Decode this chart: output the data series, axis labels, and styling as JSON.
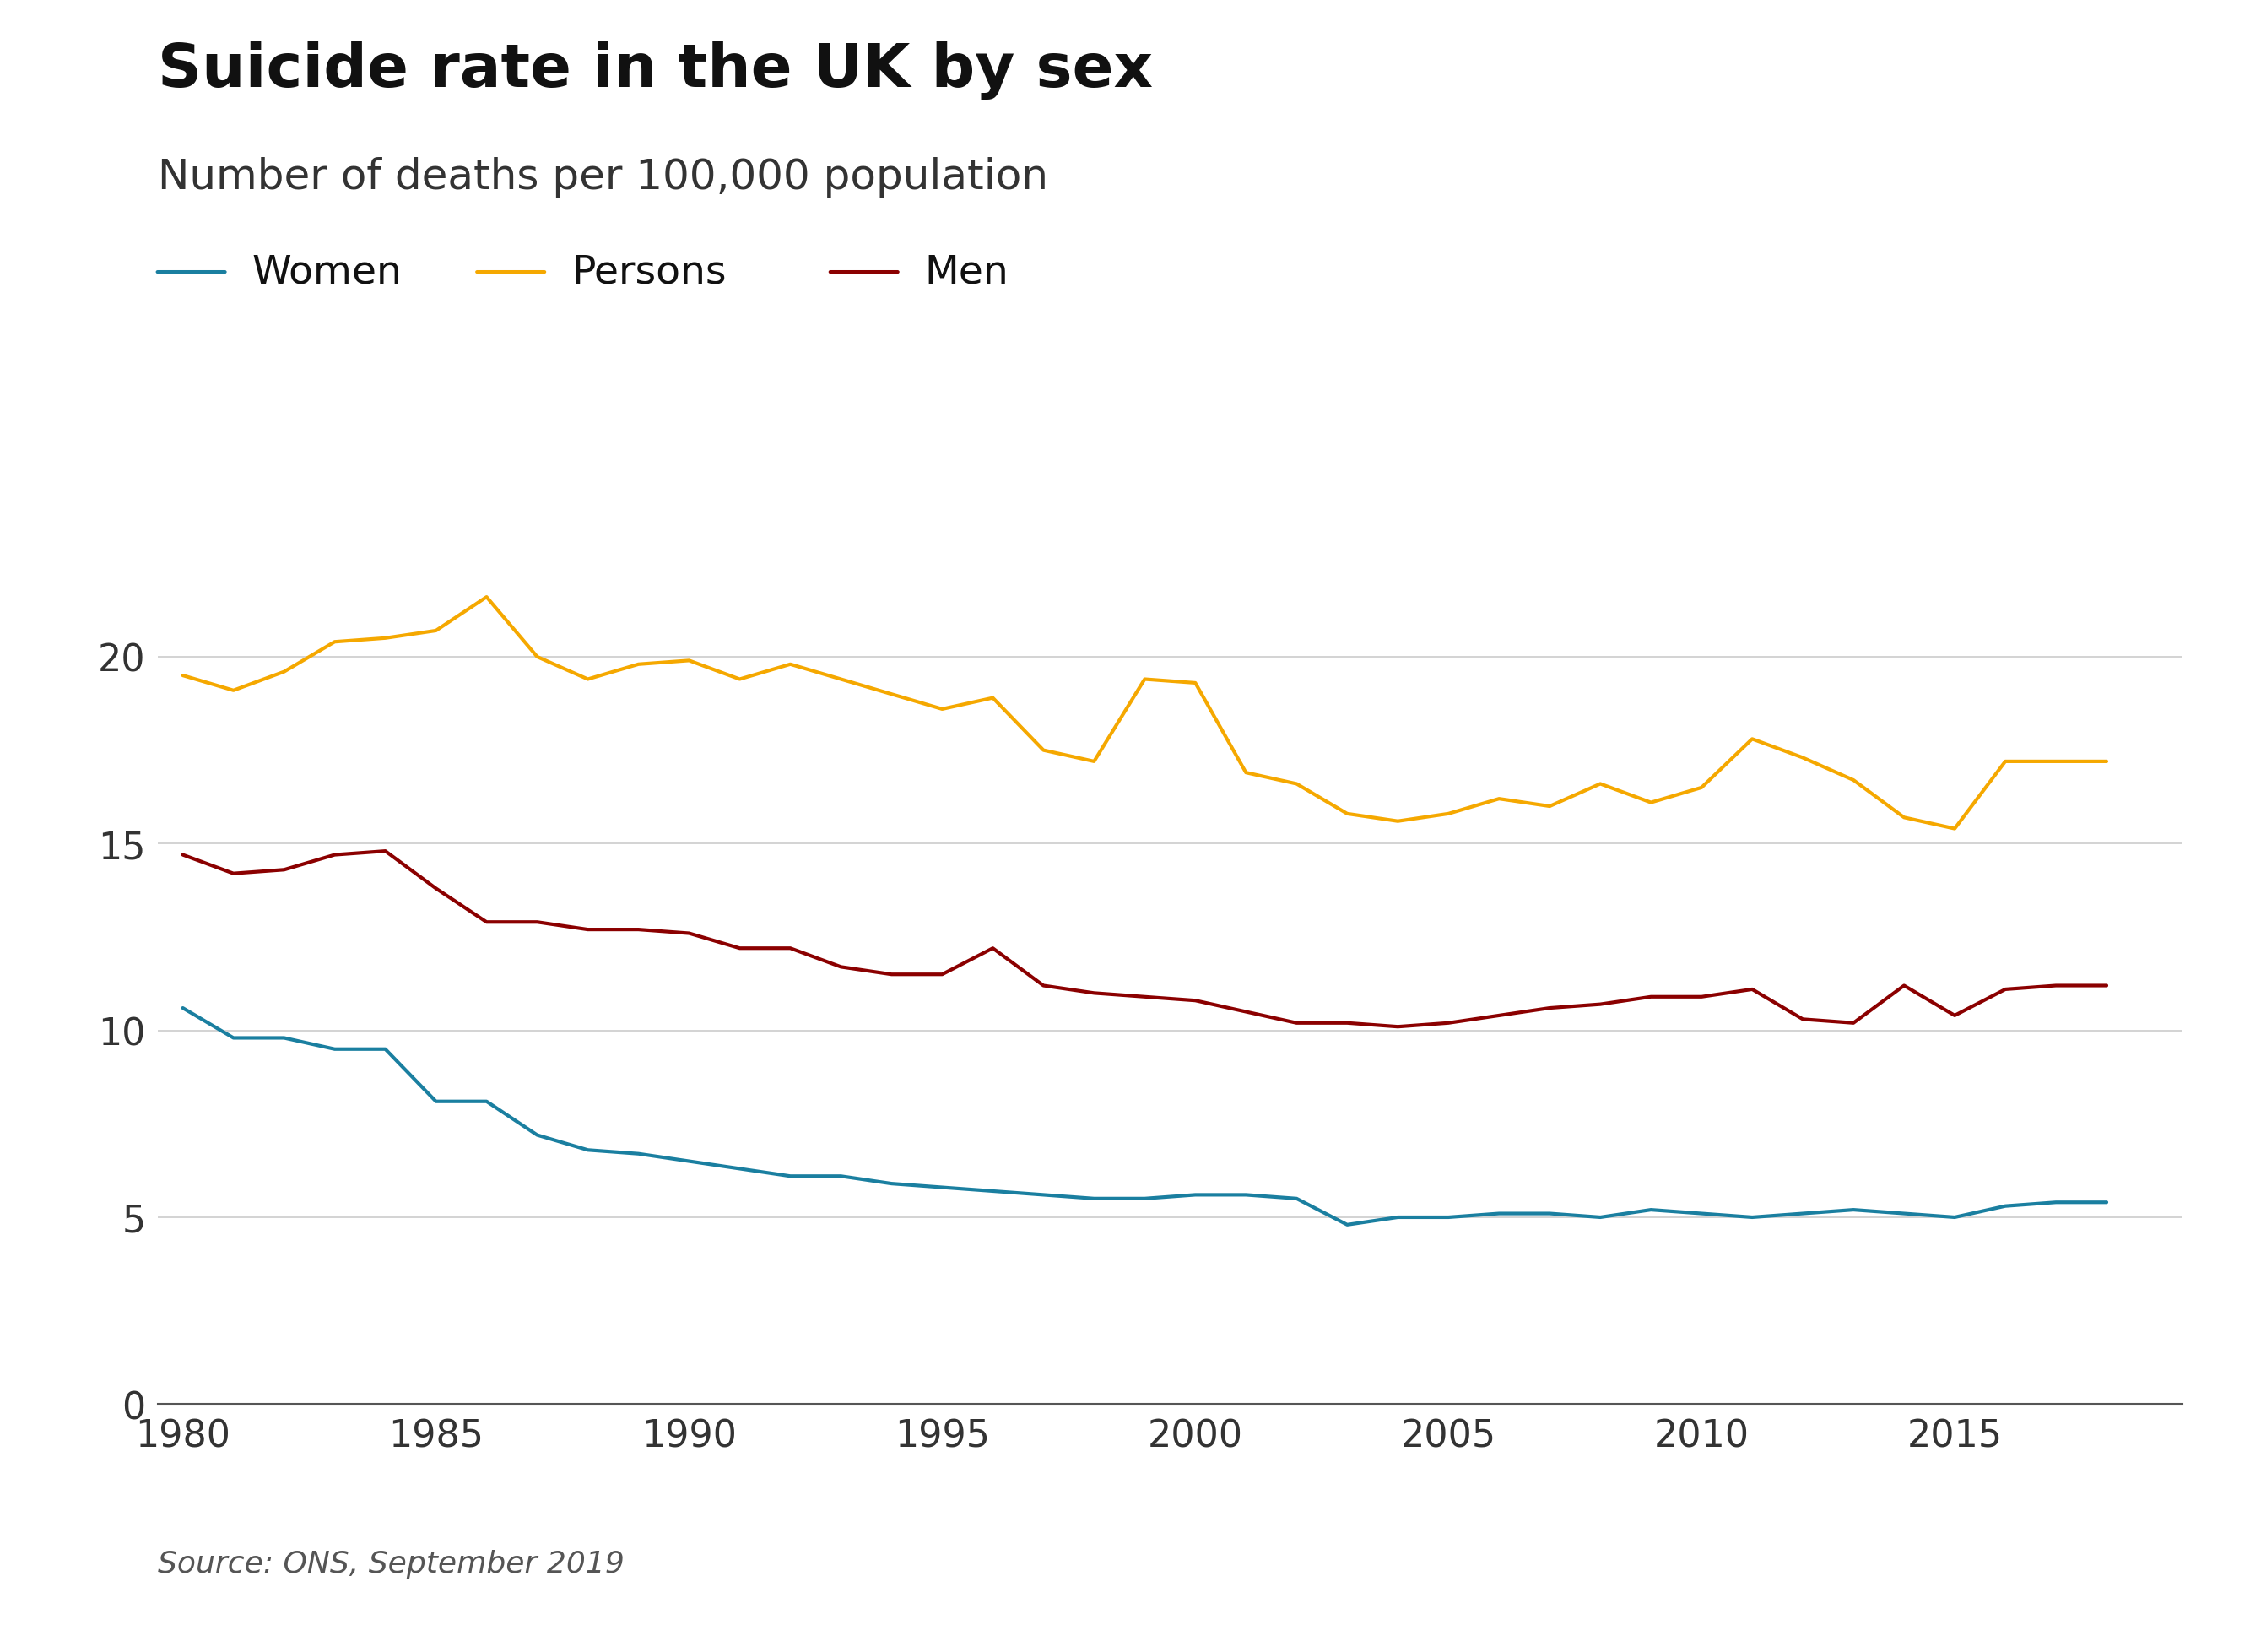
{
  "title": "Suicide rate in the UK by sex",
  "subtitle": "Number of deaths per 100,000 population",
  "source": "Source: ONS, September 2019",
  "years": [
    1980,
    1981,
    1982,
    1983,
    1984,
    1985,
    1986,
    1987,
    1988,
    1989,
    1990,
    1991,
    1992,
    1993,
    1994,
    1995,
    1996,
    1997,
    1998,
    1999,
    2000,
    2001,
    2002,
    2003,
    2004,
    2005,
    2006,
    2007,
    2008,
    2009,
    2010,
    2011,
    2012,
    2013,
    2014,
    2015,
    2016,
    2017,
    2018
  ],
  "women": [
    10.6,
    9.8,
    9.8,
    9.5,
    9.5,
    8.1,
    8.1,
    7.2,
    6.8,
    6.7,
    6.5,
    6.3,
    6.1,
    6.1,
    5.9,
    5.8,
    5.7,
    5.6,
    5.5,
    5.5,
    5.6,
    5.6,
    5.5,
    4.8,
    5.0,
    5.0,
    5.1,
    5.1,
    5.0,
    5.2,
    5.1,
    5.0,
    5.1,
    5.2,
    5.1,
    5.0,
    5.3,
    5.4,
    5.4
  ],
  "persons": [
    19.5,
    19.1,
    19.6,
    20.4,
    20.5,
    20.7,
    21.6,
    20.0,
    19.4,
    19.8,
    19.9,
    19.4,
    19.8,
    19.4,
    19.0,
    18.6,
    18.9,
    17.5,
    17.2,
    19.4,
    19.3,
    16.9,
    16.6,
    15.8,
    15.6,
    15.8,
    16.2,
    16.0,
    16.6,
    16.1,
    16.5,
    17.8,
    17.3,
    16.7,
    15.7,
    15.4,
    17.2,
    17.2,
    17.2
  ],
  "men": [
    14.7,
    14.2,
    14.3,
    14.7,
    14.8,
    13.8,
    12.9,
    12.9,
    12.7,
    12.7,
    12.6,
    12.2,
    12.2,
    11.7,
    11.5,
    11.5,
    12.2,
    11.2,
    11.0,
    10.9,
    10.8,
    10.5,
    10.2,
    10.2,
    10.1,
    10.2,
    10.4,
    10.6,
    10.7,
    10.9,
    10.9,
    11.1,
    10.3,
    10.2,
    11.2,
    10.4,
    11.1,
    11.2,
    11.2
  ],
  "color_women": "#1a7fa0",
  "color_persons": "#f5a800",
  "color_men": "#8b0000",
  "bg_color": "#ffffff",
  "grid_color": "#cccccc",
  "title_fontsize": 52,
  "subtitle_fontsize": 36,
  "legend_fontsize": 34,
  "tick_fontsize": 32,
  "source_fontsize": 26,
  "ylim": [
    0,
    23
  ],
  "yticks": [
    0,
    5,
    10,
    15,
    20
  ],
  "xticks": [
    1980,
    1985,
    1990,
    1995,
    2000,
    2005,
    2010,
    2015
  ]
}
